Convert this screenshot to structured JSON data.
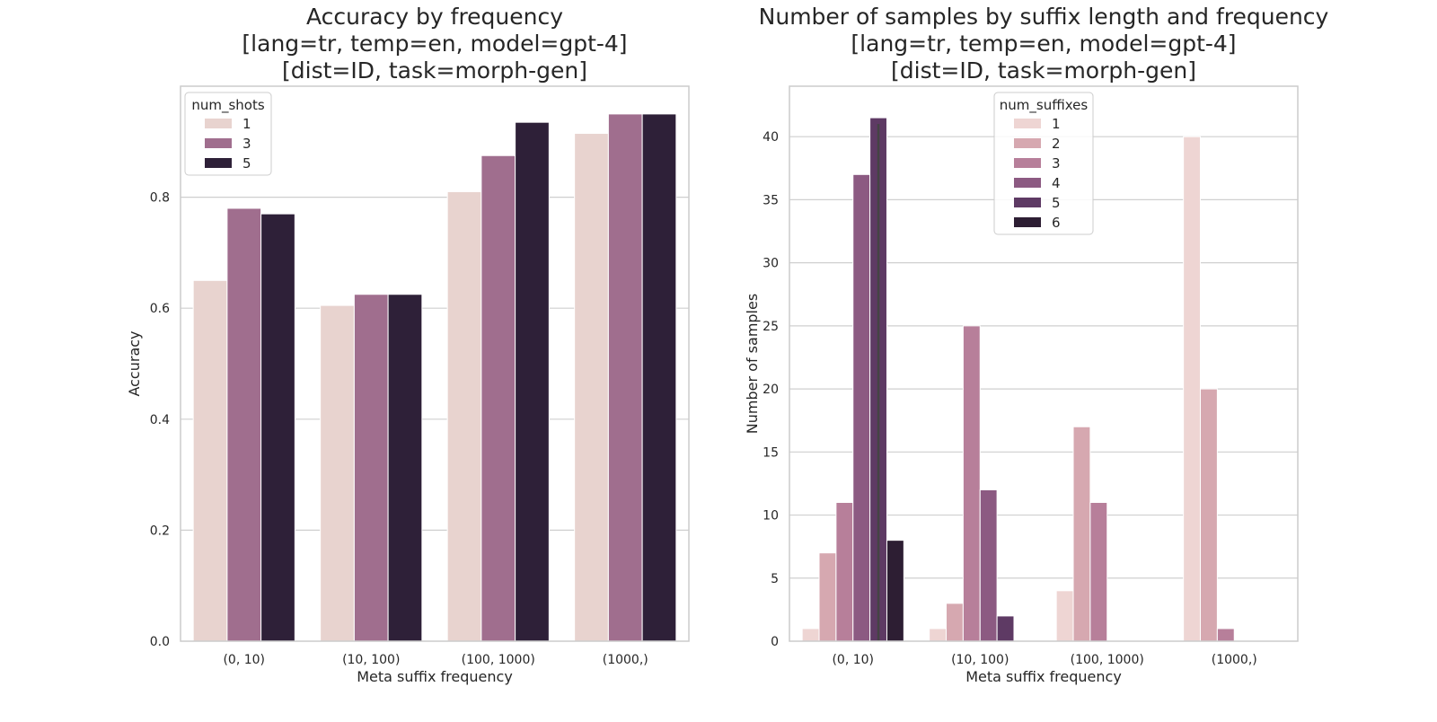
{
  "chart_data": [
    {
      "type": "bar",
      "title_lines": [
        "Accuracy by frequency",
        "[lang=tr, temp=en, model=gpt-4]",
        "[dist=ID, task=morph-gen]"
      ],
      "xlabel": "Meta suffix frequency",
      "ylabel": "Accuracy",
      "categories": [
        "(0, 10)",
        "(10, 100)",
        "(100, 1000)",
        "(1000,)"
      ],
      "ylim": [
        0,
        1.0
      ],
      "yticks": [
        "0.0",
        "0.2",
        "0.4",
        "0.6",
        "0.8"
      ],
      "legend": {
        "title": "num_shots",
        "placement": "top-left"
      },
      "grid": true,
      "series": [
        {
          "name": "1",
          "color": "#e8d3cf",
          "values": [
            0.65,
            0.605,
            0.81,
            0.915
          ]
        },
        {
          "name": "3",
          "color": "#a06e8e",
          "values": [
            0.78,
            0.625,
            0.875,
            0.95
          ]
        },
        {
          "name": "5",
          "color": "#2e2038",
          "values": [
            0.77,
            0.625,
            0.935,
            0.95
          ]
        }
      ]
    },
    {
      "type": "bar",
      "title_lines": [
        "Number of samples by suffix length and frequency",
        "[lang=tr, temp=en, model=gpt-4]",
        "[dist=ID, task=morph-gen]"
      ],
      "xlabel": "Meta suffix frequency",
      "ylabel": "Number of samples",
      "categories": [
        "(0, 10)",
        "(10, 100)",
        "(100, 1000)",
        "(1000,)"
      ],
      "ylim": [
        0,
        44
      ],
      "yticks": [
        "0",
        "5",
        "10",
        "15",
        "20",
        "25",
        "30",
        "35",
        "40"
      ],
      "legend": {
        "title": "num_suffixes",
        "placement": "top-center"
      },
      "grid": true,
      "series": [
        {
          "name": "1",
          "color": "#eed5d3",
          "values": [
            1,
            1,
            4,
            40
          ]
        },
        {
          "name": "2",
          "color": "#d6a8b0",
          "values": [
            7,
            3,
            17,
            20
          ]
        },
        {
          "name": "3",
          "color": "#b77f9a",
          "values": [
            11,
            25,
            11,
            1
          ]
        },
        {
          "name": "4",
          "color": "#8c5a82",
          "values": [
            37,
            12,
            0,
            0
          ]
        },
        {
          "name": "5",
          "color": "#5e3a64",
          "values": [
            41.5,
            2,
            0,
            0
          ],
          "error": [
            [
              null,
              41,
              42
            ]
          ]
        },
        {
          "name": "6",
          "color": "#2d1e33",
          "values": [
            8,
            0,
            0,
            0
          ]
        }
      ]
    }
  ]
}
